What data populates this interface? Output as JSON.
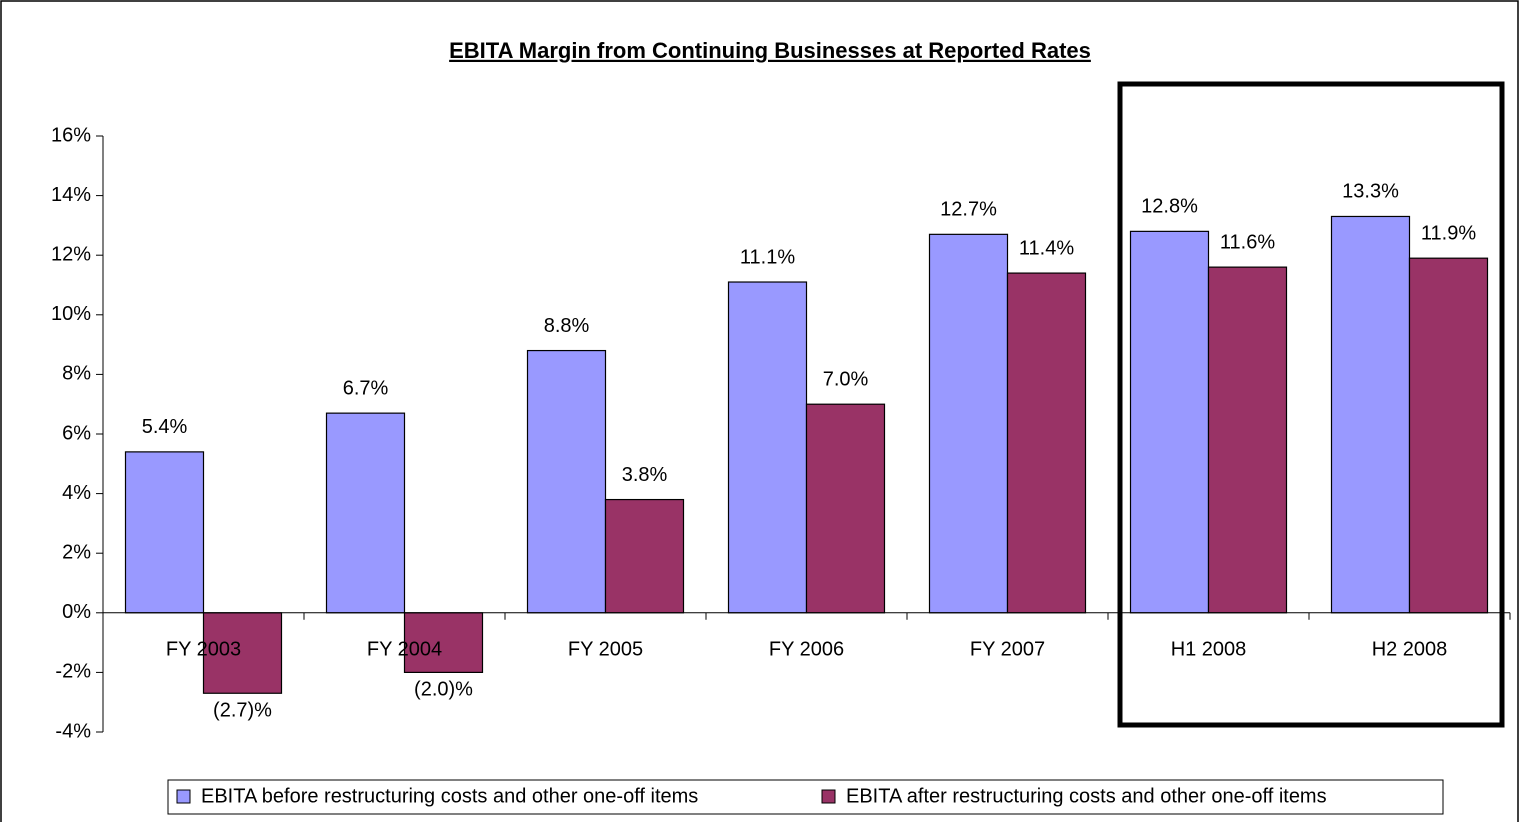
{
  "chart_data": {
    "type": "bar",
    "title": "EBITA Margin from Continuing Businesses at Reported Rates",
    "categories": [
      "FY 2003",
      "FY 2004",
      "FY 2005",
      "FY 2006",
      "FY 2007",
      "H1 2008",
      "H2 2008"
    ],
    "series": [
      {
        "name": "EBITA before restructuring costs and other one-off items",
        "color": "#9999ff",
        "values": [
          5.4,
          6.7,
          8.8,
          11.1,
          12.7,
          12.8,
          13.3
        ],
        "value_labels": [
          "5.4%",
          "6.7%",
          "8.8%",
          "11.1%",
          "12.7%",
          "12.8%",
          "13.3%"
        ]
      },
      {
        "name": "EBITA after restructuring costs and other one-off items",
        "color": "#993366",
        "values": [
          -2.7,
          -2.0,
          3.8,
          7.0,
          11.4,
          11.6,
          11.9
        ],
        "value_labels": [
          "(2.7)%",
          "(2.0)%",
          "3.8%",
          "7.0%",
          "11.4%",
          "11.6%",
          "11.9%"
        ]
      }
    ],
    "ylim": [
      -4,
      16
    ],
    "yticks": [
      {
        "value": -4,
        "label": "-4%"
      },
      {
        "value": -2,
        "label": "-2%"
      },
      {
        "value": 0,
        "label": "0%"
      },
      {
        "value": 2,
        "label": "2%"
      },
      {
        "value": 4,
        "label": "4%"
      },
      {
        "value": 6,
        "label": "6%"
      },
      {
        "value": 8,
        "label": "8%"
      },
      {
        "value": 10,
        "label": "10%"
      },
      {
        "value": 12,
        "label": "12%"
      },
      {
        "value": 14,
        "label": "14%"
      },
      {
        "value": 16,
        "label": "16%"
      }
    ],
    "grid": false,
    "legend": "bottom"
  }
}
